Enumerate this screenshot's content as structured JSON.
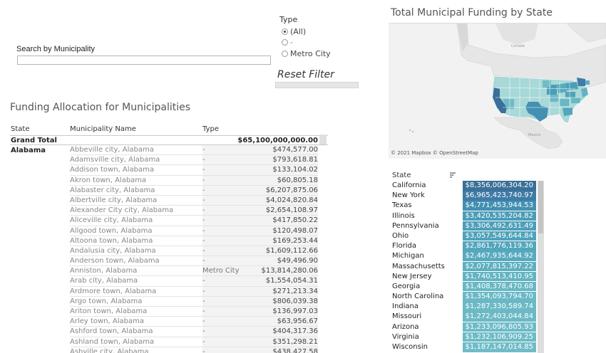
{
  "search": {
    "label": "Search by Municipality",
    "value": "",
    "placeholder": ""
  },
  "type_filter": {
    "title": "Type",
    "options": [
      {
        "label": "(All)",
        "selected": true
      },
      {
        "label": "-",
        "selected": false
      },
      {
        "label": "Metro City",
        "selected": false
      }
    ],
    "reset_label": "Reset Filter"
  },
  "funding_table": {
    "title": "Funding Allocation for Municipalities",
    "columns": {
      "state": "State",
      "municipality": "Municipality Name",
      "type": "Type"
    },
    "grand_total": {
      "label": "Grand Total",
      "value": "$65,100,000,000.00"
    },
    "state": "Alabama",
    "rows": [
      {
        "municipality": "Abbeville city, Alabama",
        "type": "-",
        "amount": "$474,577.00"
      },
      {
        "municipality": "Adamsville city, Alabama",
        "type": "-",
        "amount": "$793,618.81"
      },
      {
        "municipality": "Addison town, Alabama",
        "type": "-",
        "amount": "$133,104.02"
      },
      {
        "municipality": "Akron town, Alabama",
        "type": "-",
        "amount": "$60,805.18"
      },
      {
        "municipality": "Alabaster city, Alabama",
        "type": "-",
        "amount": "$6,207,875.06"
      },
      {
        "municipality": "Albertville city, Alabama",
        "type": "-",
        "amount": "$4,024,820.84"
      },
      {
        "municipality": "Alexander City city, Alabama",
        "type": "-",
        "amount": "$2,654,108.97"
      },
      {
        "municipality": "Aliceville city, Alabama",
        "type": "-",
        "amount": "$417,850.22"
      },
      {
        "municipality": "Allgood town, Alabama",
        "type": "-",
        "amount": "$120,498.07"
      },
      {
        "municipality": "Altoona town, Alabama",
        "type": "-",
        "amount": "$169,253.44"
      },
      {
        "municipality": "Andalusia city, Alabama",
        "type": "-",
        "amount": "$1,609,112.66"
      },
      {
        "municipality": "Anderson town, Alabama",
        "type": "-",
        "amount": "$49,496.90"
      },
      {
        "municipality": "Anniston, Alabama",
        "type": "Metro City",
        "amount": "$13,814,280.06"
      },
      {
        "municipality": "Arab city, Alabama",
        "type": "-",
        "amount": "$1,554,054.31"
      },
      {
        "municipality": "Ardmore town, Alabama",
        "type": "-",
        "amount": "$271,213.34"
      },
      {
        "municipality": "Argo town, Alabama",
        "type": "-",
        "amount": "$806,039.38"
      },
      {
        "municipality": "Ariton town, Alabama",
        "type": "-",
        "amount": "$136,997.03"
      },
      {
        "municipality": "Arley town, Alabama",
        "type": "-",
        "amount": "$63,956.67"
      },
      {
        "municipality": "Ashford town, Alabama",
        "type": "-",
        "amount": "$404,317.36"
      },
      {
        "municipality": "Ashland town, Alabama",
        "type": "-",
        "amount": "$351,298.21"
      },
      {
        "municipality": "Ashville city, Alabama",
        "type": "-",
        "amount": "$438,427.58"
      }
    ]
  },
  "map": {
    "title": "Total Municipal Funding by State",
    "labels": {
      "canada": "Canada",
      "mexico": "Mexico"
    },
    "credit": "© 2021 Mapbox  © OpenStreetMap",
    "colors": {
      "ocean": "#f2f2f2",
      "land": "#e4e4e4",
      "border": "#c8c8c8"
    }
  },
  "state_list": {
    "header": "State",
    "sort_icon": "sort-descending-icon",
    "rows": [
      {
        "state": "California",
        "value": "$8,356,006,304.20",
        "color": "#3a6f99"
      },
      {
        "state": "New York",
        "value": "$6,965,423,740.97",
        "color": "#3f7ba6"
      },
      {
        "state": "Texas",
        "value": "$4,771,453,944.53",
        "color": "#4390b1"
      },
      {
        "state": "Illinois",
        "value": "$3,420,535,204.82",
        "color": "#4b9cb7"
      },
      {
        "state": "Pennsylvania",
        "value": "$3,306,492,631.49",
        "color": "#4d9fb8"
      },
      {
        "state": "Ohio",
        "value": "$3,057,549,644.84",
        "color": "#50a2ba"
      },
      {
        "state": "Florida",
        "value": "$2,861,776,119.36",
        "color": "#53a6bb"
      },
      {
        "state": "Michigan",
        "value": "$2,467,935,644.92",
        "color": "#58aabe"
      },
      {
        "state": "Massachusetts",
        "value": "$2,077,815,397.22",
        "color": "#5eafc0"
      },
      {
        "state": "New Jersey",
        "value": "$1,740,513,410.95",
        "color": "#63b3c2"
      },
      {
        "state": "Georgia",
        "value": "$1,408,378,470.68",
        "color": "#69b7c4"
      },
      {
        "state": "North Carolina",
        "value": "$1,354,093,794.70",
        "color": "#6ab8c5"
      },
      {
        "state": "Indiana",
        "value": "$1,287,330,589.74",
        "color": "#6cb9c5"
      },
      {
        "state": "Missouri",
        "value": "$1,272,403,044.84",
        "color": "#6cb9c5"
      },
      {
        "state": "Arizona",
        "value": "$1,233,096,805.93",
        "color": "#6ebbc6"
      },
      {
        "state": "Virginia",
        "value": "$1,232,106,909.25",
        "color": "#6ebbc6"
      },
      {
        "state": "Wisconsin",
        "value": "$1,187,147,014.85",
        "color": "#70bcc7"
      }
    ]
  }
}
